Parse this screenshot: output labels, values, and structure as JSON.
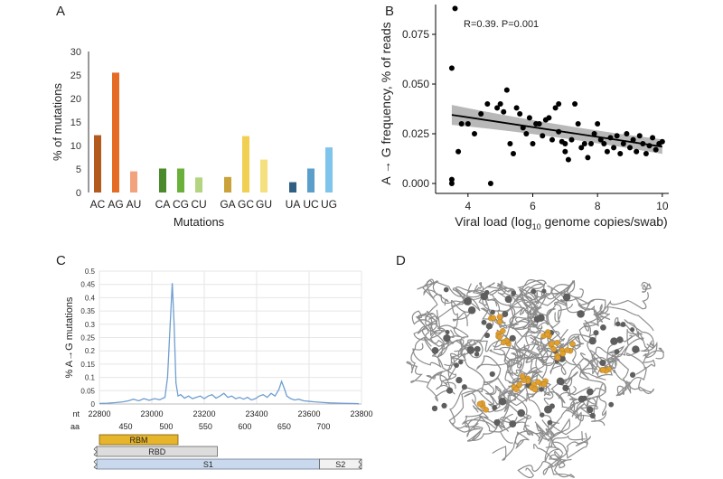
{
  "panel_labels": {
    "a": "A",
    "b": "B",
    "c": "C",
    "d": "D"
  },
  "chart_data": [
    {
      "panel": "A",
      "type": "bar",
      "xlabel": "Mutations",
      "ylabel": "% of mutations",
      "ylim": [
        0,
        30
      ],
      "yticks": [
        0,
        5,
        10,
        15,
        20,
        25,
        30
      ],
      "categories": [
        "AC",
        "AG",
        "AU",
        "CA",
        "CG",
        "CU",
        "GA",
        "GC",
        "GU",
        "UA",
        "UC",
        "UG"
      ],
      "values": [
        12.2,
        25.5,
        4.5,
        5.1,
        5.1,
        3.2,
        3.3,
        12.0,
        7.0,
        2.2,
        5.1,
        9.6
      ],
      "colors": [
        "#b35a1f",
        "#e46c24",
        "#f2a27c",
        "#4a8a2a",
        "#6bb03a",
        "#b3d480",
        "#c9a23a",
        "#f1cf52",
        "#f4e07e",
        "#2f5f82",
        "#5a9fcc",
        "#7fc4ec"
      ]
    },
    {
      "panel": "B",
      "type": "scatter",
      "annotation": "R=0.39. P=0.001",
      "xlabel": "Viral load (log",
      "xlabel_sub": "10",
      "xlabel_rest": " genome copies/swab)",
      "ylabel": "A → G frequency, % of reads",
      "xlim": [
        3,
        10.2
      ],
      "ylim": [
        -0.005,
        0.09
      ],
      "xticks": [
        4,
        6,
        8,
        10
      ],
      "yticks": [
        "0.000",
        "0.025",
        "0.050",
        "0.075"
      ],
      "fit": {
        "x1": 3.5,
        "y1": 0.0345,
        "x2": 10,
        "y2": 0.0185
      },
      "points": [
        [
          3.5,
          0.058
        ],
        [
          3.6,
          0.088
        ],
        [
          3.7,
          0.016
        ],
        [
          3.5,
          0.002
        ],
        [
          3.5,
          0.0
        ],
        [
          3.8,
          0.03
        ],
        [
          4.0,
          0.03
        ],
        [
          4.2,
          0.025
        ],
        [
          4.4,
          0.035
        ],
        [
          4.6,
          0.04
        ],
        [
          4.7,
          0.0
        ],
        [
          4.9,
          0.038
        ],
        [
          5.0,
          0.04
        ],
        [
          5.1,
          0.036
        ],
        [
          5.2,
          0.047
        ],
        [
          5.3,
          0.02
        ],
        [
          5.4,
          0.015
        ],
        [
          5.5,
          0.038
        ],
        [
          5.6,
          0.035
        ],
        [
          5.7,
          0.028
        ],
        [
          5.8,
          0.025
        ],
        [
          5.9,
          0.033
        ],
        [
          6.0,
          0.02
        ],
        [
          6.1,
          0.03
        ],
        [
          6.2,
          0.03
        ],
        [
          6.3,
          0.024
        ],
        [
          6.4,
          0.032
        ],
        [
          6.5,
          0.033
        ],
        [
          6.6,
          0.022
        ],
        [
          6.7,
          0.038
        ],
        [
          6.8,
          0.04
        ],
        [
          6.8,
          0.026
        ],
        [
          6.9,
          0.021
        ],
        [
          7.0,
          0.016
        ],
        [
          7.0,
          0.02
        ],
        [
          7.1,
          0.012
        ],
        [
          7.2,
          0.022
        ],
        [
          7.3,
          0.04
        ],
        [
          7.4,
          0.03
        ],
        [
          7.5,
          0.018
        ],
        [
          7.6,
          0.02
        ],
        [
          7.7,
          0.013
        ],
        [
          7.8,
          0.02
        ],
        [
          7.9,
          0.025
        ],
        [
          8.0,
          0.03
        ],
        [
          8.1,
          0.022
        ],
        [
          8.2,
          0.02
        ],
        [
          8.3,
          0.016
        ],
        [
          8.4,
          0.023
        ],
        [
          8.5,
          0.018
        ],
        [
          8.6,
          0.024
        ],
        [
          8.7,
          0.015
        ],
        [
          8.8,
          0.02
        ],
        [
          8.9,
          0.025
        ],
        [
          9.0,
          0.018
        ],
        [
          9.1,
          0.022
        ],
        [
          9.2,
          0.016
        ],
        [
          9.3,
          0.024
        ],
        [
          9.4,
          0.02
        ],
        [
          9.5,
          0.015
        ],
        [
          9.6,
          0.019
        ],
        [
          9.7,
          0.023
        ],
        [
          9.8,
          0.017
        ],
        [
          9.9,
          0.02
        ],
        [
          10.0,
          0.021
        ]
      ]
    },
    {
      "panel": "C",
      "type": "line",
      "ylabel": "% A→G mutations",
      "ylim": [
        0,
        0.5
      ],
      "yticks": [
        "0",
        "0.05",
        "0.1",
        "0.15",
        "0.2",
        "0.25",
        "0.3",
        "0.35",
        "0.4",
        "0.45",
        "0.5"
      ],
      "xlim": [
        22800,
        23800
      ],
      "xticks": [
        22800,
        23000,
        23200,
        23400,
        23600,
        23800
      ],
      "nt_prefix": "nt",
      "aa_prefix": "aa",
      "aa_ticks": [
        {
          "label": "450",
          "nt": 22900
        },
        {
          "label": "500",
          "nt": 23055
        },
        {
          "label": "550",
          "nt": 23205
        },
        {
          "label": "600",
          "nt": 23355
        },
        {
          "label": "650",
          "nt": 23505
        },
        {
          "label": "700",
          "nt": 23655
        }
      ],
      "series": [
        {
          "values": [
            [
              22800,
              0.002
            ],
            [
              22830,
              0.003
            ],
            [
              22860,
              0.005
            ],
            [
              22890,
              0.008
            ],
            [
              22910,
              0.012
            ],
            [
              22930,
              0.018
            ],
            [
              22950,
              0.012
            ],
            [
              22970,
              0.02
            ],
            [
              22990,
              0.014
            ],
            [
              23010,
              0.02
            ],
            [
              23030,
              0.016
            ],
            [
              23050,
              0.025
            ],
            [
              23060,
              0.1
            ],
            [
              23070,
              0.3
            ],
            [
              23078,
              0.455
            ],
            [
              23085,
              0.3
            ],
            [
              23092,
              0.08
            ],
            [
              23100,
              0.03
            ],
            [
              23110,
              0.035
            ],
            [
              23125,
              0.022
            ],
            [
              23140,
              0.03
            ],
            [
              23155,
              0.02
            ],
            [
              23170,
              0.025
            ],
            [
              23185,
              0.03
            ],
            [
              23200,
              0.02
            ],
            [
              23215,
              0.03
            ],
            [
              23230,
              0.035
            ],
            [
              23245,
              0.022
            ],
            [
              23260,
              0.03
            ],
            [
              23275,
              0.04
            ],
            [
              23290,
              0.025
            ],
            [
              23305,
              0.03
            ],
            [
              23320,
              0.02
            ],
            [
              23335,
              0.025
            ],
            [
              23350,
              0.018
            ],
            [
              23365,
              0.025
            ],
            [
              23380,
              0.015
            ],
            [
              23395,
              0.02
            ],
            [
              23410,
              0.03
            ],
            [
              23425,
              0.035
            ],
            [
              23440,
              0.025
            ],
            [
              23455,
              0.04
            ],
            [
              23470,
              0.03
            ],
            [
              23485,
              0.055
            ],
            [
              23495,
              0.085
            ],
            [
              23505,
              0.06
            ],
            [
              23515,
              0.03
            ],
            [
              23530,
              0.02
            ],
            [
              23545,
              0.015
            ],
            [
              23560,
              0.018
            ],
            [
              23580,
              0.012
            ],
            [
              23600,
              0.01
            ],
            [
              23620,
              0.008
            ],
            [
              23650,
              0.006
            ],
            [
              23680,
              0.004
            ],
            [
              23720,
              0.003
            ],
            [
              23760,
              0.002
            ],
            [
              23790,
              0.001
            ]
          ],
          "color": "#6f9ed1"
        }
      ],
      "domains": [
        {
          "label": "RBM",
          "start": 22800,
          "end": 23100,
          "fill": "#e6b52b",
          "stroke": "#7a5c10"
        },
        {
          "label": "RBD",
          "start": 22790,
          "end": 23250,
          "fill": "#dcdcdc",
          "stroke": "#666666"
        },
        {
          "label": "S1",
          "start": 22790,
          "end": 23640,
          "fill": "#c9d8ec",
          "stroke": "#6a7f9a"
        },
        {
          "label": "S2",
          "start": 23640,
          "end": 23800,
          "fill": "#f2f2f2",
          "stroke": "#666666"
        }
      ]
    }
  ]
}
